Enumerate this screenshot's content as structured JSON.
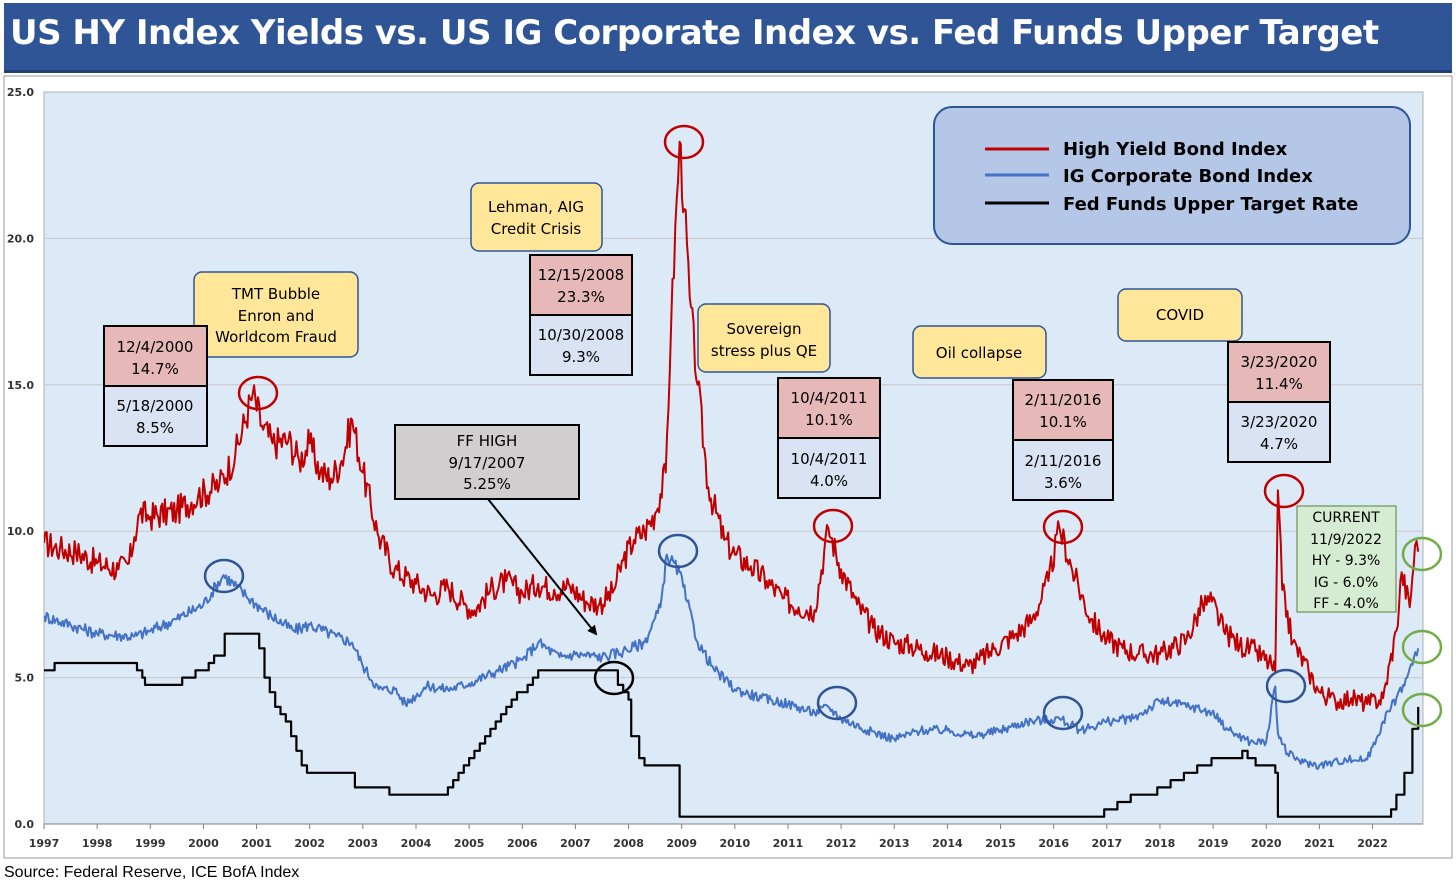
{
  "title": "US HY Index Yields vs. US IG Corporate Index vs. Fed Funds Upper Target",
  "source": "Source: Federal Reserve, ICE BofA Index",
  "colors": {
    "title_bg": "#2f5597",
    "plot_bg": "#dce9f7",
    "hy": "#c00000",
    "ig": "#4472c4",
    "ff": "#000000"
  },
  "chart_data": {
    "type": "line",
    "title": "US HY Index Yields vs. US IG Corporate Index vs. Fed Funds Upper Target",
    "xlabel": "",
    "ylabel": "",
    "xlim": [
      1997,
      2022.95
    ],
    "ylim": [
      0,
      25
    ],
    "y_ticks": [
      "0.0",
      "5.0",
      "10.0",
      "15.0",
      "20.0",
      "25.0"
    ],
    "x_ticks": [
      "1997",
      "1998",
      "1999",
      "2000",
      "2001",
      "2002",
      "2003",
      "2004",
      "2005",
      "2006",
      "2007",
      "2008",
      "2009",
      "2010",
      "2011",
      "2012",
      "2013",
      "2014",
      "2015",
      "2016",
      "2017",
      "2018",
      "2019",
      "2020",
      "2021",
      "2022"
    ],
    "legend": [
      "High Yield Bond Index",
      "IG Corporate Bond Index",
      "Fed Funds Upper Target Rate"
    ],
    "legend_position": "top-right",
    "series": [
      {
        "name": "High Yield Bond Index",
        "x": [
          1997,
          1997.3,
          1997.6,
          1998,
          1998.4,
          1998.6,
          1998.7,
          1998.8,
          1999,
          1999.5,
          1999.9,
          2000.3,
          2000.6,
          2000.93,
          2001.1,
          2001.3,
          2001.6,
          2001.8,
          2002,
          2002.2,
          2002.4,
          2002.6,
          2002.8,
          2003,
          2003.3,
          2003.6,
          2004,
          2004.3,
          2004.6,
          2004.9,
          2005.1,
          2005.4,
          2005.7,
          2006,
          2006.3,
          2006.6,
          2006.9,
          2007.2,
          2007.45,
          2007.7,
          2007.9,
          2008.1,
          2008.3,
          2008.5,
          2008.7,
          2008.8,
          2008.96,
          2009.05,
          2009.15,
          2009.3,
          2009.5,
          2009.8,
          2010,
          2010.3,
          2010.6,
          2010.9,
          2011.2,
          2011.5,
          2011.76,
          2012,
          2012.3,
          2012.6,
          2013,
          2013.3,
          2013.6,
          2014,
          2014.4,
          2014.6,
          2014.9,
          2015.3,
          2015.6,
          2015.9,
          2016.11,
          2016.4,
          2016.7,
          2017,
          2017.3,
          2017.6,
          2018,
          2018.5,
          2018.8,
          2018.98,
          2019.2,
          2019.5,
          2019.8,
          2020.1,
          2020.17,
          2020.22,
          2020.3,
          2020.5,
          2020.8,
          2021,
          2021.3,
          2021.6,
          2021.9,
          2022.2,
          2022.45,
          2022.55,
          2022.7,
          2022.8,
          2022.86
        ],
        "values": [
          9.6,
          9.4,
          9.3,
          8.9,
          8.7,
          8.9,
          9.8,
          10.6,
          10.5,
          10.7,
          11.2,
          11.6,
          12.6,
          14.7,
          13.6,
          13.0,
          13.1,
          12.4,
          13.0,
          12.0,
          11.8,
          12.4,
          13.8,
          12.0,
          9.8,
          8.7,
          8.2,
          7.8,
          8.1,
          7.5,
          7.3,
          8.0,
          8.3,
          7.9,
          8.2,
          8.0,
          8.1,
          7.6,
          7.5,
          7.9,
          9.0,
          9.7,
          10.0,
          10.6,
          12.0,
          17.0,
          23.3,
          21.0,
          18.0,
          15.0,
          11.5,
          9.7,
          9.2,
          8.8,
          8.3,
          7.7,
          7.4,
          7.3,
          10.1,
          8.7,
          7.5,
          6.7,
          6.2,
          6.1,
          5.9,
          5.7,
          5.4,
          5.6,
          6.0,
          6.5,
          7.0,
          8.3,
          10.1,
          8.4,
          7.0,
          6.3,
          6.0,
          5.8,
          5.8,
          6.3,
          7.5,
          7.6,
          6.6,
          6.1,
          5.9,
          5.4,
          5.2,
          11.4,
          8.0,
          6.2,
          5.2,
          4.5,
          4.2,
          4.3,
          4.1,
          4.3,
          6.6,
          8.6,
          7.4,
          9.5,
          9.3
        ]
      },
      {
        "name": "IG Corporate Bond Index",
        "x": [
          1997,
          1997.5,
          1998,
          1998.7,
          1999,
          1999.5,
          2000,
          2000.38,
          2000.8,
          2001.2,
          2001.7,
          2002,
          2002.5,
          2002.8,
          2003,
          2003.3,
          2003.6,
          2003.8,
          2004.2,
          2004.6,
          2005,
          2005.5,
          2006,
          2006.3,
          2006.7,
          2007,
          2007.5,
          2007.9,
          2008.3,
          2008.6,
          2008.72,
          2008.96,
          2009.1,
          2009.3,
          2009.6,
          2010,
          2010.5,
          2011,
          2011.5,
          2011.76,
          2012,
          2012.5,
          2013,
          2013.5,
          2014,
          2014.5,
          2015,
          2015.5,
          2016.11,
          2016.5,
          2017,
          2017.5,
          2018,
          2018.6,
          2018.98,
          2019.3,
          2019.7,
          2020,
          2020.17,
          2020.22,
          2020.4,
          2020.7,
          2021,
          2021.5,
          2021.9,
          2022.2,
          2022.45,
          2022.65,
          2022.86
        ],
        "values": [
          7.1,
          6.8,
          6.5,
          6.4,
          6.6,
          7.0,
          7.5,
          8.5,
          7.8,
          7.2,
          6.6,
          6.8,
          6.4,
          6.2,
          5.4,
          4.6,
          4.6,
          4.1,
          4.7,
          4.6,
          4.8,
          5.2,
          5.6,
          6.2,
          5.7,
          5.8,
          5.7,
          5.9,
          6.2,
          7.4,
          9.2,
          8.6,
          7.6,
          6.2,
          5.3,
          4.6,
          4.3,
          4.1,
          3.8,
          4.0,
          3.6,
          3.2,
          2.9,
          3.2,
          3.2,
          3.0,
          3.2,
          3.5,
          3.6,
          3.2,
          3.5,
          3.6,
          4.2,
          4.0,
          3.8,
          3.2,
          2.8,
          2.8,
          4.7,
          3.1,
          2.4,
          2.1,
          2.0,
          2.2,
          2.2,
          3.5,
          4.3,
          5.0,
          6.0
        ]
      },
      {
        "name": "Fed Funds Upper Target Rate",
        "x": [
          1997,
          1997.2,
          1998.7,
          1998.75,
          1998.85,
          1998.9,
          1999.45,
          1999.6,
          1999.85,
          2000.1,
          2000.2,
          2000.4,
          2000.98,
          2001.05,
          2001.15,
          2001.25,
          2001.35,
          2001.45,
          2001.55,
          2001.65,
          2001.75,
          2001.85,
          2001.95,
          2002.85,
          2003.5,
          2004.5,
          2004.6,
          2004.7,
          2004.8,
          2004.9,
          2005,
          2005.1,
          2005.2,
          2005.3,
          2005.4,
          2005.5,
          2005.6,
          2005.7,
          2005.8,
          2005.9,
          2006,
          2006.1,
          2006.2,
          2006.3,
          2006.45,
          2007.7,
          2007.8,
          2007.9,
          2008,
          2008.05,
          2008.2,
          2008.3,
          2008.96,
          2015.95,
          2016.95,
          2017.2,
          2017.45,
          2017.95,
          2018.2,
          2018.45,
          2018.7,
          2018.97,
          2019.55,
          2019.65,
          2019.8,
          2020.17,
          2020.22,
          2022.2,
          2022.35,
          2022.45,
          2022.6,
          2022.75,
          2022.86
        ],
        "values": [
          5.25,
          5.5,
          5.5,
          5.25,
          5.0,
          4.75,
          4.75,
          5.0,
          5.25,
          5.5,
          5.75,
          6.5,
          6.5,
          6.0,
          5.0,
          4.5,
          4.0,
          3.75,
          3.5,
          3.0,
          2.5,
          2.0,
          1.75,
          1.25,
          1.0,
          1.0,
          1.25,
          1.5,
          1.75,
          2.0,
          2.25,
          2.5,
          2.75,
          3.0,
          3.25,
          3.5,
          3.75,
          4.0,
          4.25,
          4.5,
          4.5,
          4.75,
          5.0,
          5.25,
          5.25,
          5.25,
          4.75,
          4.5,
          4.25,
          3.0,
          2.25,
          2.0,
          0.25,
          0.25,
          0.5,
          0.75,
          1.0,
          1.25,
          1.5,
          1.75,
          2.0,
          2.25,
          2.5,
          2.25,
          2.0,
          1.75,
          0.25,
          0.25,
          0.5,
          1.0,
          1.75,
          3.25,
          4.0
        ]
      }
    ]
  },
  "legend_labels": [
    "High Yield Bond Index",
    "IG Corporate Bond Index",
    "Fed Funds Upper Target Rate"
  ],
  "callouts": [
    {
      "name": "tmt-bubble-callout",
      "lines": [
        "TMT Bubble",
        "Enron and",
        "Worldcom Fraud"
      ]
    },
    {
      "name": "lehman-callout",
      "lines": [
        "Lehman, AIG",
        "Credit Crisis"
      ]
    },
    {
      "name": "sovereign-callout",
      "lines": [
        "Sovereign",
        "stress plus QE"
      ]
    },
    {
      "name": "oil-collapse-callout",
      "lines": [
        "Oil collapse"
      ]
    },
    {
      "name": "covid-callout",
      "lines": [
        "COVID"
      ]
    },
    {
      "name": "ff-high-callout",
      "lines": [
        "FF HIGH",
        "9/17/2007",
        "5.25%"
      ]
    },
    {
      "name": "current-callout",
      "lines": [
        "CURRENT",
        "11/9/2022",
        "HY - 9.3%",
        "IG - 6.0%",
        "FF - 4.0%"
      ]
    }
  ],
  "date_boxes": [
    {
      "name": "date-box-2000",
      "hy": [
        "12/4/2000",
        "14.7%"
      ],
      "ig": [
        "5/18/2000",
        "8.5%"
      ]
    },
    {
      "name": "date-box-2008",
      "hy": [
        "12/15/2008",
        "23.3%"
      ],
      "ig": [
        "10/30/2008",
        "9.3%"
      ]
    },
    {
      "name": "date-box-2011",
      "hy": [
        "10/4/2011",
        "10.1%"
      ],
      "ig": [
        "10/4/2011",
        "4.0%"
      ]
    },
    {
      "name": "date-box-2016",
      "hy": [
        "2/11/2016",
        "10.1%"
      ],
      "ig": [
        "2/11/2016",
        "3.6%"
      ]
    },
    {
      "name": "date-box-2020",
      "hy": [
        "3/23/2020",
        "11.4%"
      ],
      "ig": [
        "3/23/2020",
        "4.7%"
      ]
    }
  ]
}
